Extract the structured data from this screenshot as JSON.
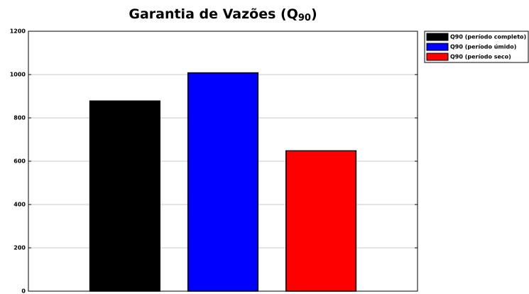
{
  "chart_data": {
    "type": "bar",
    "title": [
      "Garantia de Vazões (Q",
      "90",
      ")"
    ],
    "categories": [
      null
    ],
    "series": [
      {
        "name": "Q90 (período completo)",
        "color": "#000000",
        "values": [
          878
        ]
      },
      {
        "name": "Q90 (período úmido)",
        "color": "#0000ff",
        "values": [
          1008
        ]
      },
      {
        "name": "Q90 (período seco)",
        "color": "#ff0000",
        "values": [
          648
        ]
      }
    ],
    "ylim": [
      0,
      1200
    ],
    "yticks": [
      0,
      200,
      400,
      600,
      800,
      1000,
      1200
    ],
    "grid": true,
    "legend": "outside-right"
  }
}
